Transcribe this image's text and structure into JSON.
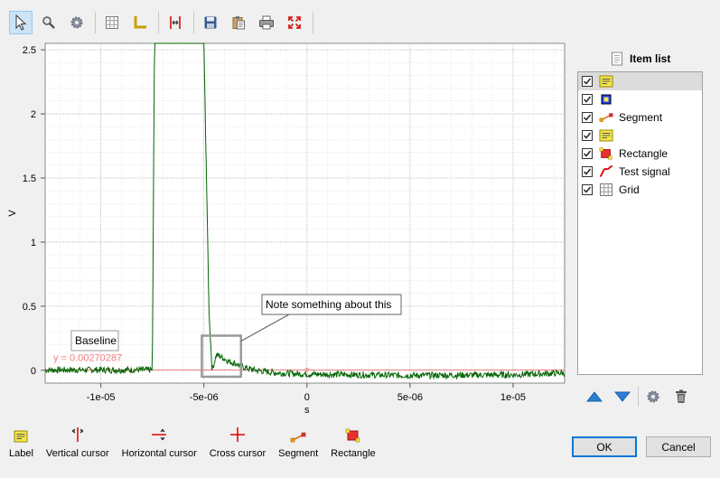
{
  "toolbar": {
    "buttons": [
      {
        "name": "select-tool",
        "icon": "cursor-arrow-icon",
        "active": true
      },
      {
        "name": "zoom-tool",
        "icon": "magnifier-icon"
      },
      {
        "name": "settings-tool",
        "icon": "gear-icon"
      },
      {
        "name": "grid-tool",
        "icon": "grid-icon"
      },
      {
        "name": "axes-tool",
        "icon": "axes-icon"
      },
      {
        "name": "cursor-tool",
        "icon": "cursors-icon"
      },
      {
        "name": "save-tool",
        "icon": "floppy-icon"
      },
      {
        "name": "copy-tool",
        "icon": "clipboard-icon"
      },
      {
        "name": "print-tool",
        "icon": "printer-icon"
      },
      {
        "name": "fullscreen-tool",
        "icon": "expand-icon"
      }
    ]
  },
  "chart_data": {
    "type": "line",
    "xlabel": "s",
    "ylabel": "V",
    "xlim": [
      -1.27e-05,
      1.25e-05
    ],
    "ylim": [
      -0.1,
      2.55
    ],
    "x_ticks": [
      -1e-05,
      -5e-06,
      0,
      5e-06,
      1e-05
    ],
    "x_tick_labels": [
      "-1e-05",
      "-5e-06",
      "0",
      "5e-06",
      "1e-05"
    ],
    "y_ticks": [
      0,
      0.5,
      1,
      1.5,
      2,
      2.5
    ],
    "y_tick_labels": [
      "0",
      "0.5",
      "1",
      "1.5",
      "2",
      "2.5"
    ],
    "grid": true,
    "series": [
      {
        "color": "#006400",
        "x": [
          -1.27e-05,
          -7.5e-06,
          -7.4e-06,
          -5e-06,
          -4.75e-06,
          -4.6e-06,
          -4.4e-06,
          -4.2e-06,
          -3.8e-06,
          -3.4e-06,
          -3e-06,
          -2.5e-06,
          -1.5e-06,
          0,
          5e-06,
          1e-05,
          1.25e-05
        ],
        "y": [
          0.003,
          0.003,
          2.55,
          2.55,
          0.45,
          0.0,
          0.12,
          0.11,
          0.07,
          0.05,
          0.02,
          0.0,
          -0.02,
          -0.03,
          -0.04,
          -0.035,
          -0.02
        ]
      }
    ],
    "baseline": {
      "y": 0.00270287,
      "label": "y = 0.00270287",
      "color": "#f08080"
    },
    "point_marker": {
      "x": 0,
      "y": 0.003
    },
    "annotations": {
      "baseline_label": "Baseline",
      "note": "Note something about this",
      "rectangle": {
        "x0": -5.1e-06,
        "x1": -3.2e-06,
        "y0": -0.05,
        "y1": 0.27
      }
    }
  },
  "item_list": {
    "title": "Item list",
    "items": [
      {
        "name": "label-item",
        "icon": "label-icon",
        "label": "",
        "checked": true,
        "selected": true
      },
      {
        "name": "marker-item",
        "icon": "marker-icon",
        "label": "",
        "checked": true
      },
      {
        "name": "segment-item",
        "icon": "segment-icon",
        "label": "Segment",
        "checked": true
      },
      {
        "name": "label2-item",
        "icon": "label-icon",
        "label": "",
        "checked": true
      },
      {
        "name": "rectangle-item",
        "icon": "rectangle-icon",
        "label": "Rectangle",
        "checked": true
      },
      {
        "name": "test-signal-item",
        "icon": "curve-icon",
        "label": "Test signal",
        "checked": true
      },
      {
        "name": "grid-item",
        "icon": "grid-icon",
        "label": "Grid",
        "checked": true
      }
    ]
  },
  "bottom_tools": [
    {
      "name": "label",
      "icon": "label-icon",
      "label": "Label"
    },
    {
      "name": "vertical-cursor",
      "icon": "vertical-cursor-icon",
      "label": "Vertical cursor"
    },
    {
      "name": "horizontal-cursor",
      "icon": "horizontal-cursor-icon",
      "label": "Horizontal cursor"
    },
    {
      "name": "cross-cursor",
      "icon": "cross-cursor-icon",
      "label": "Cross cursor"
    },
    {
      "name": "segment",
      "icon": "segment-icon",
      "label": "Segment"
    },
    {
      "name": "rectangle",
      "icon": "rectangle-icon",
      "label": "Rectangle"
    }
  ],
  "buttons": {
    "ok": "OK",
    "cancel": "Cancel"
  }
}
